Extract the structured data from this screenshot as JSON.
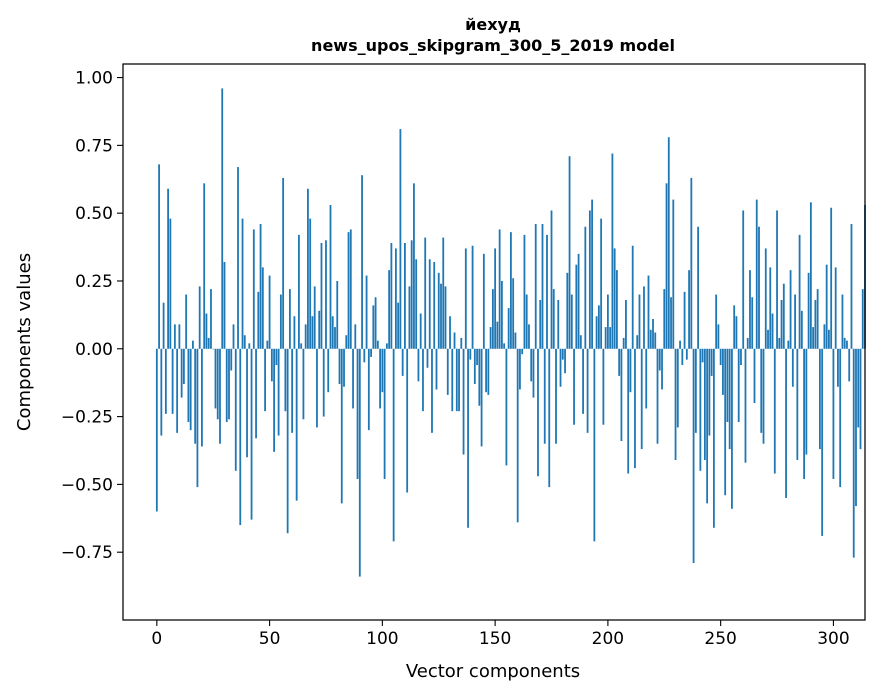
{
  "chart_data": {
    "type": "bar",
    "title_line1": "йехуд",
    "title_line2": "news_upos_skipgram_300_5_2019 model",
    "xlabel": "Vector components",
    "ylabel": "Components values",
    "xlim": [
      -15,
      314
    ],
    "ylim": [
      -1.0,
      1.05
    ],
    "xticks": [
      0,
      50,
      100,
      150,
      200,
      250,
      300
    ],
    "yticks": [
      -0.75,
      -0.5,
      -0.25,
      0.0,
      0.25,
      0.5,
      0.75,
      1.0
    ],
    "ytick_labels": [
      "−0.75",
      "−0.50",
      "−0.25",
      "0.00",
      "0.25",
      "0.50",
      "0.75",
      "1.00"
    ],
    "grid": false,
    "color": "#1f77b4",
    "values": [
      -0.6,
      0.68,
      -0.32,
      0.17,
      -0.24,
      0.59,
      0.48,
      -0.24,
      0.09,
      -0.31,
      0.09,
      -0.18,
      -0.13,
      0.2,
      -0.27,
      -0.3,
      0.03,
      -0.35,
      -0.51,
      0.23,
      -0.36,
      0.61,
      0.13,
      0.04,
      0.22,
      0.0,
      -0.22,
      -0.26,
      -0.35,
      0.96,
      0.32,
      -0.27,
      -0.26,
      -0.08,
      0.09,
      -0.45,
      0.67,
      -0.65,
      0.48,
      0.05,
      -0.4,
      0.02,
      -0.63,
      0.44,
      -0.33,
      0.21,
      0.46,
      0.3,
      -0.23,
      0.03,
      0.27,
      -0.12,
      -0.38,
      -0.06,
      -0.32,
      0.2,
      0.63,
      -0.23,
      -0.68,
      0.22,
      -0.31,
      0.12,
      -0.56,
      0.42,
      0.02,
      -0.26,
      0.09,
      0.59,
      0.48,
      0.12,
      0.23,
      -0.29,
      0.14,
      0.39,
      -0.25,
      0.4,
      -0.16,
      0.53,
      0.12,
      0.08,
      0.25,
      -0.13,
      -0.57,
      -0.14,
      0.05,
      0.43,
      0.44,
      -0.22,
      0.09,
      -0.48,
      -0.84,
      0.64,
      -0.05,
      0.27,
      -0.3,
      -0.03,
      0.16,
      0.19,
      0.03,
      -0.22,
      -0.16,
      -0.48,
      0.02,
      0.29,
      0.39,
      -0.71,
      0.37,
      0.17,
      0.81,
      -0.1,
      0.39,
      -0.53,
      0.23,
      0.4,
      0.61,
      0.33,
      -0.12,
      0.13,
      -0.23,
      0.41,
      -0.07,
      0.33,
      -0.31,
      0.32,
      -0.15,
      0.28,
      0.24,
      0.41,
      0.23,
      -0.17,
      0.12,
      -0.23,
      0.06,
      -0.23,
      -0.23,
      0.04,
      -0.39,
      0.37,
      -0.66,
      -0.04,
      0.38,
      -0.13,
      -0.06,
      -0.21,
      -0.36,
      0.35,
      -0.16,
      -0.17,
      0.08,
      0.22,
      0.37,
      0.1,
      0.44,
      0.25,
      0.02,
      -0.43,
      0.15,
      0.43,
      0.26,
      0.06,
      -0.64,
      -0.15,
      -0.02,
      0.42,
      0.2,
      0.09,
      -0.12,
      -0.18,
      0.46,
      -0.47,
      0.18,
      0.46,
      -0.35,
      0.42,
      -0.51,
      0.51,
      0.22,
      -0.35,
      0.18,
      -0.14,
      -0.04,
      -0.09,
      0.28,
      0.71,
      0.2,
      -0.28,
      0.31,
      0.35,
      0.05,
      -0.24,
      0.45,
      -0.31,
      0.51,
      0.55,
      -0.71,
      0.12,
      0.16,
      0.48,
      -0.28,
      0.08,
      0.2,
      0.08,
      0.72,
      0.37,
      0.29,
      -0.1,
      -0.34,
      0.04,
      0.18,
      -0.46,
      -0.16,
      0.38,
      -0.44,
      0.05,
      0.2,
      -0.37,
      0.23,
      -0.22,
      0.27,
      0.07,
      0.11,
      0.06,
      -0.35,
      -0.08,
      -0.15,
      0.22,
      0.61,
      0.78,
      0.19,
      0.55,
      -0.41,
      -0.29,
      0.03,
      -0.06,
      0.21,
      -0.04,
      0.29,
      0.63,
      -0.79,
      -0.31,
      0.45,
      -0.45,
      -0.05,
      -0.41,
      -0.57,
      -0.32,
      -0.1,
      -0.66,
      0.2,
      0.09,
      -0.06,
      -0.17,
      -0.54,
      -0.27,
      -0.37,
      -0.59,
      0.16,
      0.12,
      -0.27,
      -0.06,
      0.51,
      -0.42,
      0.04,
      0.29,
      0.19,
      -0.2,
      0.55,
      0.45,
      -0.31,
      -0.35,
      0.37,
      0.07,
      0.3,
      0.13,
      -0.46,
      0.51,
      0.04,
      0.18,
      0.24,
      -0.55,
      0.03,
      0.29,
      -0.14,
      0.2,
      -0.41,
      0.42,
      0.14,
      -0.48,
      -0.39,
      0.28,
      0.54,
      0.08,
      0.18,
      0.22,
      -0.37,
      -0.69,
      0.09,
      0.31,
      0.07,
      0.52,
      -0.48,
      0.3,
      -0.14,
      -0.51,
      0.2,
      0.04,
      0.03,
      -0.12,
      0.46,
      -0.77,
      -0.58,
      -0.29,
      -0.37,
      0.22,
      0.53
    ]
  }
}
